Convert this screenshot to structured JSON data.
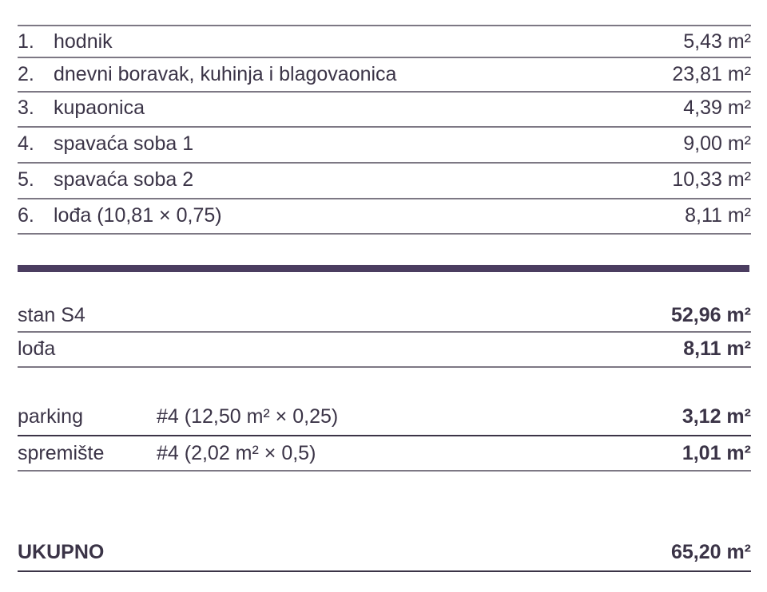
{
  "rooms": [
    {
      "num": "1.",
      "name": "hodnik",
      "area": "5,43 m²"
    },
    {
      "num": "2.",
      "name": "dnevni boravak, kuhinja i blagovaonica",
      "area": "23,81 m²"
    },
    {
      "num": "3.",
      "name": "kupaonica",
      "area": "4,39 m²"
    },
    {
      "num": "4.",
      "name": "spavaća soba 1",
      "area": "9,00 m²"
    },
    {
      "num": "5.",
      "name": "spavaća soba 2",
      "area": "10,33 m²"
    },
    {
      "num": "6.",
      "name": "lođa (10,81 × 0,75)",
      "area": "8,11 m²"
    }
  ],
  "summary": [
    {
      "label": "stan S4",
      "area": "52,96 m²"
    },
    {
      "label": "lođa",
      "area": "8,11 m²"
    }
  ],
  "extras": [
    {
      "label": "parking",
      "detail": "#4 (12,50 m² × 0,25)",
      "area": "3,12 m²"
    },
    {
      "label": "spremište",
      "detail": "#4 (2,02 m² × 0,5)",
      "area": "1,01 m²"
    }
  ],
  "total": {
    "label": "UKUPNO",
    "area": "65,20 m²"
  },
  "colors": {
    "text": "#3b3447",
    "divider_bar": "#4b3d60",
    "lines": "#7d7884"
  }
}
